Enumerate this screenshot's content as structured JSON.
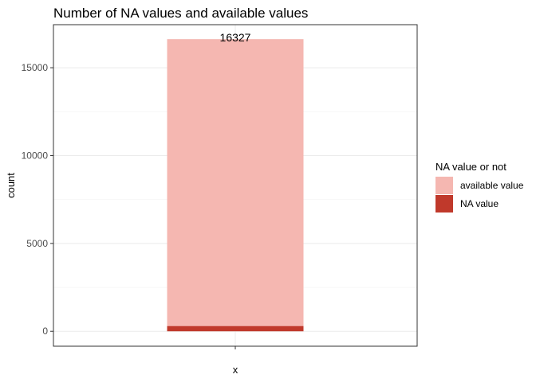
{
  "chart_data": {
    "type": "bar",
    "title": "Number of NA values and available values",
    "xlabel": "x",
    "ylabel": "count",
    "categories": [
      ""
    ],
    "stack": true,
    "ylim": [
      -850,
      17450
    ],
    "yticks": [
      0,
      5000,
      10000,
      15000
    ],
    "grid": true,
    "legend_title": "NA value or not",
    "legend_position": "right",
    "series": [
      {
        "name": "NA value",
        "values": [
          300
        ],
        "color": "#C0392B"
      },
      {
        "name": "available value",
        "values": [
          16327
        ],
        "color": "#F5B7B1"
      }
    ],
    "data_labels": [
      {
        "text": "16327",
        "value": 16327
      }
    ]
  }
}
